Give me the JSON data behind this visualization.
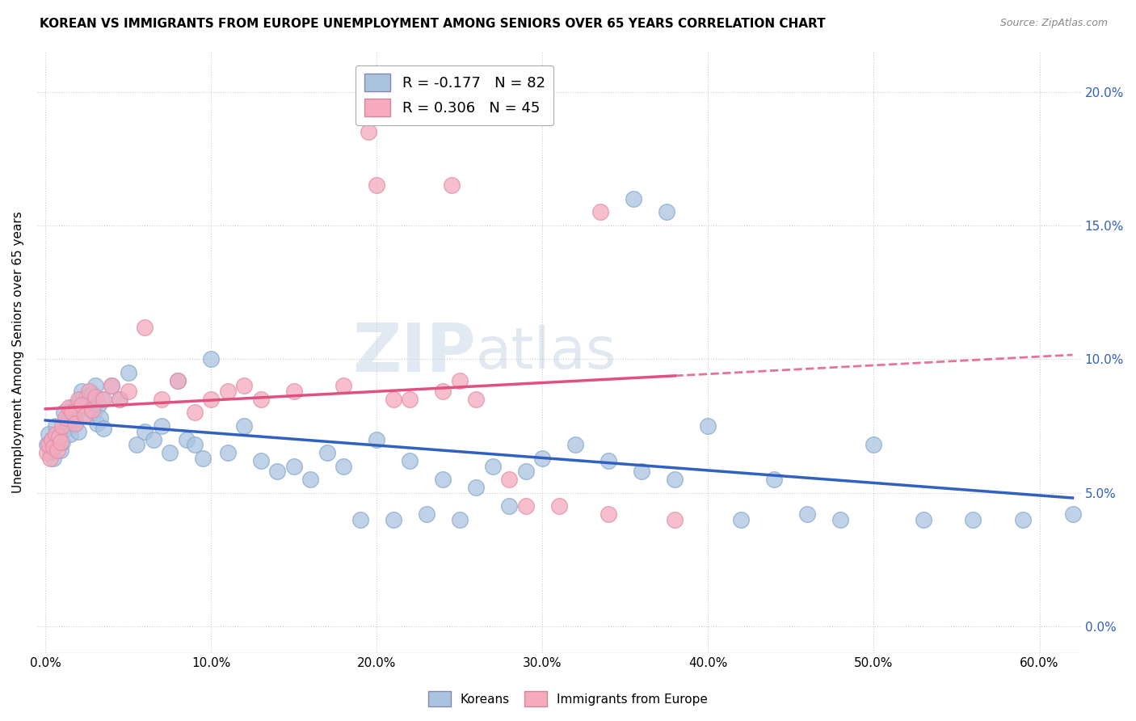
{
  "title": "KOREAN VS IMMIGRANTS FROM EUROPE UNEMPLOYMENT AMONG SENIORS OVER 65 YEARS CORRELATION CHART",
  "source": "Source: ZipAtlas.com",
  "ylabel": "Unemployment Among Seniors over 65 years",
  "korean_R": -0.177,
  "korean_N": 82,
  "europe_R": 0.306,
  "europe_N": 45,
  "korean_color": "#aac4e0",
  "europe_color": "#f5aabe",
  "korean_line_color": "#3060c0",
  "europe_line_color": "#e05080",
  "xlim": [
    -0.005,
    0.625
  ],
  "ylim": [
    -0.01,
    0.215
  ],
  "xtick_vals": [
    0.0,
    0.1,
    0.2,
    0.3,
    0.4,
    0.5,
    0.6
  ],
  "xtick_labels": [
    "0.0%",
    "10.0%",
    "20.0%",
    "30.0%",
    "40.0%",
    "50.0%",
    "60.0%"
  ],
  "ytick_vals": [
    0.0,
    0.05,
    0.1,
    0.15,
    0.2
  ],
  "ytick_labels": [
    "0.0%",
    "5.0%",
    "10.0%",
    "15.0%",
    "20.0%"
  ],
  "korean_x": [
    0.001,
    0.002,
    0.003,
    0.004,
    0.005,
    0.006,
    0.007,
    0.008,
    0.009,
    0.01,
    0.011,
    0.012,
    0.013,
    0.014,
    0.015,
    0.016,
    0.017,
    0.018,
    0.019,
    0.02,
    0.021,
    0.022,
    0.023,
    0.024,
    0.025,
    0.026,
    0.027,
    0.028,
    0.029,
    0.03,
    0.031,
    0.032,
    0.033,
    0.034,
    0.035,
    0.04,
    0.045,
    0.05,
    0.055,
    0.06,
    0.065,
    0.07,
    0.075,
    0.08,
    0.085,
    0.09,
    0.095,
    0.1,
    0.11,
    0.12,
    0.13,
    0.14,
    0.15,
    0.16,
    0.17,
    0.18,
    0.19,
    0.2,
    0.21,
    0.22,
    0.23,
    0.24,
    0.25,
    0.26,
    0.27,
    0.28,
    0.29,
    0.3,
    0.32,
    0.34,
    0.36,
    0.38,
    0.4,
    0.42,
    0.44,
    0.46,
    0.48,
    0.5,
    0.53,
    0.56,
    0.59,
    0.62
  ],
  "korean_y": [
    0.068,
    0.072,
    0.065,
    0.07,
    0.063,
    0.075,
    0.068,
    0.071,
    0.066,
    0.069,
    0.08,
    0.076,
    0.074,
    0.078,
    0.072,
    0.082,
    0.079,
    0.077,
    0.083,
    0.073,
    0.085,
    0.088,
    0.082,
    0.079,
    0.086,
    0.084,
    0.081,
    0.087,
    0.08,
    0.09,
    0.076,
    0.083,
    0.078,
    0.085,
    0.074,
    0.09,
    0.085,
    0.095,
    0.068,
    0.073,
    0.07,
    0.075,
    0.065,
    0.092,
    0.07,
    0.068,
    0.063,
    0.1,
    0.065,
    0.075,
    0.062,
    0.058,
    0.06,
    0.055,
    0.065,
    0.06,
    0.04,
    0.07,
    0.04,
    0.062,
    0.042,
    0.055,
    0.04,
    0.052,
    0.06,
    0.045,
    0.058,
    0.063,
    0.068,
    0.062,
    0.058,
    0.055,
    0.075,
    0.04,
    0.055,
    0.042,
    0.04,
    0.068,
    0.04,
    0.04,
    0.04,
    0.042
  ],
  "europe_x": [
    0.001,
    0.002,
    0.003,
    0.004,
    0.005,
    0.006,
    0.007,
    0.008,
    0.009,
    0.01,
    0.012,
    0.014,
    0.016,
    0.018,
    0.02,
    0.022,
    0.024,
    0.026,
    0.028,
    0.03,
    0.035,
    0.04,
    0.045,
    0.05,
    0.06,
    0.07,
    0.08,
    0.09,
    0.1,
    0.11,
    0.12,
    0.13,
    0.15,
    0.18,
    0.2,
    0.21,
    0.22,
    0.24,
    0.25,
    0.26,
    0.28,
    0.29,
    0.31,
    0.34,
    0.38
  ],
  "europe_y": [
    0.065,
    0.068,
    0.063,
    0.07,
    0.067,
    0.072,
    0.066,
    0.071,
    0.069,
    0.075,
    0.078,
    0.082,
    0.08,
    0.076,
    0.085,
    0.083,
    0.079,
    0.088,
    0.081,
    0.086,
    0.085,
    0.09,
    0.085,
    0.088,
    0.112,
    0.085,
    0.092,
    0.08,
    0.085,
    0.088,
    0.09,
    0.085,
    0.088,
    0.09,
    0.165,
    0.085,
    0.085,
    0.088,
    0.092,
    0.085,
    0.055,
    0.045,
    0.045,
    0.042,
    0.04
  ]
}
